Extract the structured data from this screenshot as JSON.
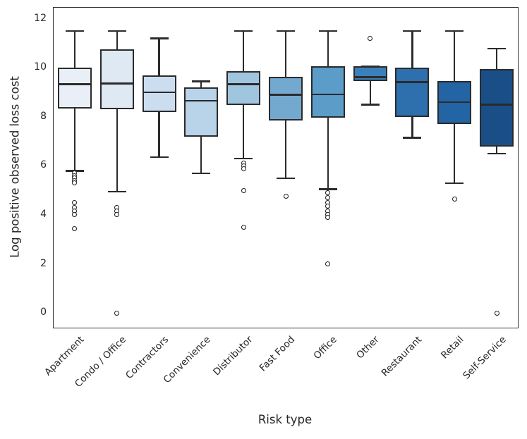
{
  "figure": {
    "ylabel": "Log positive observed loss cost",
    "xlabel": "Risk type"
  },
  "chart_data": {
    "type": "box",
    "title": "",
    "xlabel": "Risk type",
    "ylabel": "Log positive observed loss cost",
    "ylim": [
      -0.6,
      12.45
    ],
    "yticks": [
      0,
      2,
      4,
      6,
      8,
      10,
      12
    ],
    "grid": false,
    "legend": "none",
    "edge_color": "#2b2b2b",
    "spine_color": "#333333",
    "text_color": "#262626",
    "categories": [
      "Apartment",
      "Condo / Office",
      "Contractors",
      "Convenience",
      "Distributor",
      "Fast Food",
      "Office",
      "Other",
      "Restaurant",
      "Retail",
      "Self-Service"
    ],
    "series": [
      {
        "label": "Apartment",
        "whislo": 5.8,
        "q1": 8.33,
        "med": 9.33,
        "q3": 10.02,
        "whishi": 11.5,
        "fliers": [
          5.7,
          5.6,
          5.5,
          5.4,
          5.3,
          4.5,
          4.3,
          4.15,
          4.0,
          3.45
        ],
        "color": "#e8eff7"
      },
      {
        "label": "Condo / Office",
        "whislo": 4.95,
        "q1": 8.3,
        "med": 9.36,
        "q3": 10.74,
        "whishi": 11.5,
        "fliers": [
          4.3,
          4.15,
          4.0,
          0.0
        ],
        "color": "#dfe9f4"
      },
      {
        "label": "Contractors",
        "whislo": 6.35,
        "q1": 8.2,
        "med": 9.0,
        "q3": 9.68,
        "whishi": 11.2,
        "fliers": [],
        "color": "#cbddef"
      },
      {
        "label": "Convenience",
        "whislo": 5.7,
        "q1": 7.2,
        "med": 8.65,
        "q3": 9.2,
        "whishi": 9.45,
        "fliers": [],
        "color": "#b9d3e9"
      },
      {
        "label": "Distributor",
        "whislo": 6.3,
        "q1": 8.47,
        "med": 9.33,
        "q3": 9.85,
        "whishi": 11.5,
        "fliers": [
          6.1,
          6.0,
          5.88,
          5.0,
          3.5
        ],
        "color": "#a0c5df"
      },
      {
        "label": "Fast Food",
        "whislo": 5.5,
        "q1": 7.85,
        "med": 8.9,
        "q3": 9.62,
        "whishi": 11.5,
        "fliers": [
          4.75
        ],
        "color": "#74a9cf"
      },
      {
        "label": "Office",
        "whislo": 5.05,
        "q1": 7.97,
        "med": 8.92,
        "q3": 10.05,
        "whishi": 11.5,
        "fliers": [
          4.9,
          4.7,
          4.5,
          4.35,
          4.15,
          4.0,
          3.9,
          2.0
        ],
        "color": "#5c9cc9"
      },
      {
        "label": "Other",
        "whislo": 8.5,
        "q1": 9.45,
        "med": 9.62,
        "q3": 10.05,
        "whishi": 10.05,
        "fliers": [
          11.2
        ],
        "color": "#3a80ba"
      },
      {
        "label": "Restaurant",
        "whislo": 7.15,
        "q1": 8.0,
        "med": 9.42,
        "q3": 10.02,
        "whishi": 11.5,
        "fliers": [],
        "color": "#2e6fae"
      },
      {
        "label": "Retail",
        "whislo": 5.3,
        "q1": 7.72,
        "med": 8.6,
        "q3": 9.47,
        "whishi": 11.5,
        "fliers": [
          4.65
        ],
        "color": "#2264a4"
      },
      {
        "label": "Self-Service",
        "whislo": 6.5,
        "q1": 6.8,
        "med": 8.5,
        "q3": 9.96,
        "whishi": 10.78,
        "fliers": [
          0.0
        ],
        "color": "#1a4e87"
      }
    ]
  }
}
